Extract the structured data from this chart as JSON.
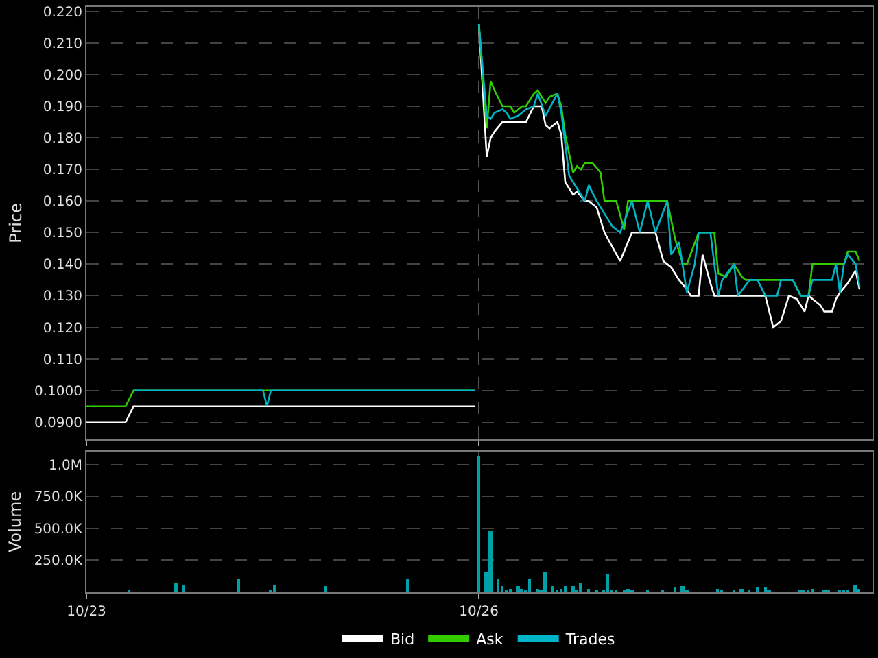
{
  "chart_data": [
    {
      "type": "line",
      "ylabel": "Price",
      "legend": "bottom",
      "grid": true,
      "tick_labels": "y",
      "marker": "none",
      "line_style": "solid",
      "categories": [
        null,
        null,
        null,
        null,
        null,
        null,
        null,
        null,
        null,
        null,
        null,
        null,
        null,
        null,
        null,
        null,
        null,
        null,
        null,
        null,
        null,
        null,
        null,
        null,
        null,
        null,
        null,
        null,
        null,
        null,
        null,
        null,
        null,
        null,
        null,
        null,
        null,
        null,
        null,
        null,
        null,
        null,
        null,
        null,
        null,
        null,
        null,
        null,
        null,
        null,
        null,
        null,
        null,
        null,
        null,
        null,
        null,
        null,
        null,
        null,
        null,
        null,
        null,
        null,
        null,
        null,
        null,
        null,
        null,
        null,
        null,
        null,
        null,
        null,
        null,
        null,
        null,
        null,
        null,
        null,
        null,
        null,
        null,
        null,
        null,
        null,
        null,
        null,
        null,
        null,
        null,
        null,
        null,
        null,
        null,
        null,
        null,
        null,
        null,
        null,
        null,
        null,
        null,
        null,
        null,
        null,
        null,
        null,
        null,
        null,
        null,
        null,
        null,
        null,
        null,
        null,
        null,
        null,
        null,
        null,
        null,
        null,
        null,
        null,
        null,
        null,
        null,
        null,
        null,
        null,
        null,
        null,
        null,
        null,
        null,
        null,
        null,
        null,
        null,
        null,
        null,
        null,
        null,
        null,
        null,
        null,
        null,
        null,
        null,
        null,
        null,
        null,
        null,
        null,
        null,
        null,
        null,
        null,
        null,
        null,
        null,
        null,
        null,
        null,
        null,
        null,
        null,
        null,
        null,
        null,
        null,
        null,
        null,
        null,
        null,
        null,
        null,
        null,
        null,
        null,
        null,
        null,
        null,
        null,
        null,
        null,
        null,
        null,
        null,
        null,
        null,
        null,
        null,
        null,
        null,
        null,
        null,
        null,
        null,
        null,
        null
      ],
      "ylim": [
        0.0845,
        0.2215
      ],
      "yticks": [
        {
          "value": 0.09,
          "label": "0.0900"
        },
        {
          "value": 0.1,
          "label": "0.1000"
        },
        {
          "value": 0.11,
          "label": "0.110"
        },
        {
          "value": 0.12,
          "label": "0.120"
        },
        {
          "value": 0.13,
          "label": "0.130"
        },
        {
          "value": 0.14,
          "label": "0.140"
        },
        {
          "value": 0.15,
          "label": "0.150"
        },
        {
          "value": 0.16,
          "label": "0.160"
        },
        {
          "value": 0.17,
          "label": "0.170"
        },
        {
          "value": 0.18,
          "label": "0.180"
        },
        {
          "value": 0.19,
          "label": "0.190"
        },
        {
          "value": 0.2,
          "label": "0.200"
        },
        {
          "value": 0.21,
          "label": "0.210"
        },
        {
          "value": 0.22,
          "label": "0.220"
        }
      ],
      "series": [
        {
          "name": "Bid",
          "color": "#ffffff",
          "values": [
            0.09,
            null,
            null,
            null,
            null,
            null,
            null,
            null,
            null,
            null,
            0.09,
            null,
            0.095,
            null,
            null,
            null,
            null,
            null,
            null,
            null,
            null,
            null,
            null,
            null,
            0.095,
            null,
            null,
            null,
            null,
            null,
            null,
            null,
            null,
            null,
            null,
            null,
            null,
            null,
            null,
            null,
            null,
            null,
            null,
            null,
            null,
            null,
            null,
            null,
            null,
            null,
            null,
            null,
            null,
            null,
            null,
            null,
            null,
            null,
            null,
            null,
            null,
            null,
            null,
            null,
            null,
            null,
            null,
            null,
            null,
            null,
            null,
            null,
            null,
            null,
            null,
            null,
            null,
            null,
            null,
            null,
            null,
            null,
            null,
            null,
            null,
            null,
            null,
            null,
            null,
            null,
            null,
            null,
            null,
            null,
            null,
            null,
            null,
            null,
            null,
            0.095,
            0.216,
            null,
            0.174,
            0.18,
            0.182,
            null,
            0.185,
            null,
            null,
            null,
            null,
            null,
            0.185,
            null,
            0.19,
            null,
            0.19,
            0.184,
            0.183,
            null,
            0.185,
            0.181,
            0.166,
            null,
            0.162,
            0.163,
            null,
            0.16,
            0.16,
            null,
            0.158,
            null,
            0.15,
            null,
            null,
            null,
            0.141,
            null,
            null,
            0.15,
            null,
            null,
            null,
            null,
            null,
            0.15,
            null,
            0.141,
            null,
            0.139,
            null,
            0.135,
            null,
            0.132,
            0.13,
            null,
            0.13,
            0.143,
            null,
            0.134,
            0.13,
            null,
            null,
            null,
            null,
            null,
            null,
            null,
            null,
            null,
            null,
            null,
            null,
            0.13,
            null,
            0.12,
            null,
            0.122,
            null,
            0.13,
            null,
            0.129,
            null,
            0.125,
            0.13,
            null,
            null,
            0.127,
            0.125,
            null,
            0.125,
            0.129,
            0.131,
            null,
            0.134,
            null,
            0.138,
            0.132,
            null,
            null,
            null
          ]
        },
        {
          "name": "Ask",
          "color": "#33cc00",
          "values": [
            0.095,
            null,
            null,
            null,
            null,
            null,
            null,
            null,
            null,
            null,
            0.095,
            null,
            0.1,
            null,
            null,
            null,
            null,
            null,
            null,
            null,
            null,
            null,
            null,
            null,
            null,
            null,
            null,
            null,
            null,
            null,
            null,
            null,
            null,
            null,
            null,
            null,
            null,
            null,
            null,
            null,
            null,
            null,
            null,
            null,
            null,
            null,
            null,
            null,
            null,
            null,
            null,
            null,
            null,
            null,
            null,
            null,
            null,
            null,
            null,
            null,
            null,
            null,
            null,
            null,
            null,
            null,
            null,
            null,
            null,
            null,
            null,
            null,
            null,
            null,
            null,
            null,
            null,
            null,
            null,
            null,
            null,
            null,
            null,
            null,
            null,
            null,
            null,
            null,
            null,
            null,
            null,
            null,
            null,
            null,
            null,
            null,
            null,
            null,
            null,
            0.1,
            0.216,
            null,
            0.183,
            0.198,
            0.195,
            null,
            0.19,
            null,
            0.19,
            0.188,
            null,
            0.19,
            0.19,
            null,
            0.194,
            0.195,
            null,
            0.191,
            0.193,
            null,
            0.194,
            0.19,
            0.181,
            null,
            0.169,
            0.171,
            0.17,
            0.172,
            null,
            0.172,
            null,
            0.169,
            0.16,
            null,
            null,
            0.16,
            null,
            0.151,
            0.16,
            null,
            null,
            null,
            null,
            null,
            null,
            null,
            null,
            null,
            0.16,
            null,
            0.148,
            null,
            0.14,
            0.14,
            null,
            null,
            0.15,
            null,
            null,
            null,
            0.15,
            0.137,
            null,
            0.136,
            null,
            0.14,
            null,
            0.136,
            0.135,
            null,
            null,
            null,
            null,
            null,
            null,
            null,
            null,
            null,
            null,
            null,
            0.135,
            null,
            0.13,
            null,
            0.13,
            0.14,
            null,
            0.14,
            null,
            null,
            null,
            null,
            null,
            0.14,
            0.144,
            null,
            0.144,
            0.141,
            null,
            null,
            null
          ]
        },
        {
          "name": "Trades",
          "color": "#00b4c8",
          "values": [
            null,
            null,
            null,
            null,
            null,
            null,
            null,
            null,
            null,
            null,
            null,
            null,
            0.1,
            null,
            null,
            null,
            null,
            null,
            null,
            null,
            null,
            null,
            null,
            null,
            null,
            null,
            null,
            null,
            null,
            null,
            null,
            null,
            null,
            null,
            null,
            null,
            null,
            null,
            null,
            null,
            null,
            null,
            null,
            null,
            null,
            0.1,
            0.095,
            0.1,
            null,
            null,
            null,
            null,
            null,
            null,
            null,
            null,
            null,
            null,
            null,
            null,
            null,
            null,
            null,
            null,
            null,
            null,
            null,
            null,
            null,
            null,
            null,
            null,
            null,
            null,
            null,
            null,
            null,
            null,
            null,
            null,
            null,
            null,
            null,
            null,
            null,
            null,
            null,
            null,
            null,
            null,
            null,
            null,
            null,
            null,
            null,
            null,
            null,
            null,
            null,
            0.1,
            0.216,
            null,
            0.187,
            0.186,
            0.188,
            null,
            0.189,
            0.188,
            0.186,
            null,
            0.187,
            null,
            0.189,
            null,
            0.19,
            0.194,
            null,
            0.187,
            null,
            null,
            0.194,
            0.188,
            null,
            0.168,
            null,
            0.164,
            null,
            0.16,
            0.165,
            null,
            0.16,
            null,
            0.156,
            null,
            0.152,
            null,
            0.15,
            null,
            null,
            0.16,
            null,
            0.15,
            null,
            0.16,
            null,
            0.15,
            null,
            null,
            0.16,
            0.143,
            null,
            0.147,
            null,
            0.131,
            null,
            0.14,
            0.15,
            null,
            null,
            0.15,
            null,
            0.13,
            0.135,
            null,
            null,
            0.14,
            0.13,
            null,
            null,
            0.135,
            null,
            0.135,
            null,
            0.13,
            null,
            null,
            0.13,
            0.135,
            null,
            null,
            0.135,
            null,
            0.13,
            null,
            0.13,
            0.135,
            null,
            null,
            null,
            null,
            0.135,
            0.14,
            0.131,
            0.14,
            0.143,
            null,
            0.14,
            0.133,
            null,
            null,
            null
          ]
        }
      ]
    },
    {
      "type": "bar",
      "ylabel": "Volume",
      "grid": true,
      "categories": [
        "10/23",
        null,
        null,
        null,
        null,
        null,
        null,
        null,
        null,
        null,
        null,
        null,
        null,
        null,
        null,
        null,
        null,
        null,
        null,
        null,
        null,
        null,
        null,
        null,
        null,
        null,
        null,
        null,
        null,
        null,
        null,
        null,
        null,
        null,
        null,
        null,
        null,
        null,
        null,
        null,
        null,
        null,
        null,
        null,
        null,
        null,
        null,
        null,
        null,
        null,
        null,
        null,
        null,
        null,
        null,
        null,
        null,
        null,
        null,
        null,
        null,
        null,
        null,
        null,
        null,
        null,
        null,
        null,
        null,
        null,
        null,
        null,
        null,
        null,
        null,
        null,
        null,
        null,
        null,
        null,
        null,
        null,
        null,
        null,
        null,
        null,
        null,
        null,
        null,
        null,
        null,
        null,
        null,
        null,
        null,
        null,
        null,
        null,
        null,
        null,
        "10/26",
        null,
        null,
        null,
        null,
        null,
        null,
        null,
        null,
        null,
        null,
        null,
        null,
        null,
        null,
        null,
        null,
        null,
        null,
        null,
        null,
        null,
        null,
        null,
        null,
        null,
        null,
        null,
        null,
        null,
        null,
        null,
        null,
        null,
        null,
        null,
        null,
        null,
        null,
        null,
        null,
        null,
        null,
        null,
        null,
        null,
        null,
        null,
        null,
        null,
        null,
        null,
        null,
        null,
        null,
        null,
        null,
        null,
        null,
        null,
        null,
        null,
        null,
        null,
        null,
        null,
        null,
        null,
        null,
        null,
        null,
        null,
        null,
        null,
        null,
        null,
        null,
        null,
        null,
        null,
        null,
        null,
        null,
        null,
        null,
        null,
        null,
        null,
        null,
        null,
        null,
        null,
        null,
        null,
        null,
        null,
        null,
        null,
        null,
        null,
        null
      ],
      "ylim": [
        0,
        1100000
      ],
      "yticks": [
        {
          "value": 250000,
          "label": "250.0K"
        },
        {
          "value": 500000,
          "label": "500.0K"
        },
        {
          "value": 750000,
          "label": "750.0K"
        },
        {
          "value": 1000000,
          "label": "1.0M"
        }
      ],
      "series": [
        {
          "color": "#00a0a8",
          "values": [
            null,
            null,
            null,
            null,
            null,
            null,
            null,
            null,
            null,
            null,
            null,
            10000,
            null,
            null,
            null,
            null,
            null,
            null,
            null,
            null,
            null,
            null,
            null,
            70000,
            null,
            60000,
            null,
            null,
            null,
            null,
            null,
            null,
            null,
            null,
            null,
            null,
            null,
            null,
            null,
            100000,
            null,
            null,
            null,
            null,
            null,
            null,
            null,
            10000,
            60000,
            null,
            null,
            null,
            null,
            null,
            null,
            null,
            null,
            null,
            null,
            null,
            null,
            50000,
            null,
            null,
            null,
            null,
            null,
            null,
            null,
            null,
            null,
            null,
            null,
            null,
            null,
            null,
            null,
            null,
            null,
            null,
            null,
            null,
            100000,
            null,
            null,
            null,
            null,
            null,
            null,
            null,
            null,
            null,
            null,
            null,
            null,
            null,
            null,
            null,
            null,
            null,
            1070000,
            null,
            160000,
            480000,
            null,
            100000,
            50000,
            20000,
            30000,
            null,
            50000,
            30000,
            20000,
            100000,
            null,
            30000,
            20000,
            160000,
            null,
            50000,
            20000,
            30000,
            50000,
            null,
            50000,
            20000,
            70000,
            null,
            30000,
            null,
            20000,
            null,
            20000,
            150000,
            20000,
            20000,
            null,
            20000,
            30000,
            20000,
            null,
            null,
            null,
            20000,
            null,
            null,
            null,
            10000,
            null,
            null,
            40000,
            null,
            50000,
            20000,
            null,
            null,
            null,
            null,
            null,
            null,
            null,
            30000,
            20000,
            null,
            null,
            20000,
            null,
            30000,
            null,
            20000,
            null,
            40000,
            null,
            40000,
            20000,
            null,
            null,
            null,
            null,
            null,
            null,
            null,
            20000,
            20000,
            20000,
            30000,
            null,
            null,
            20000,
            20000,
            null,
            null,
            20000,
            20000,
            20000,
            null,
            60000,
            30000,
            null,
            null,
            null
          ]
        }
      ]
    }
  ]
}
